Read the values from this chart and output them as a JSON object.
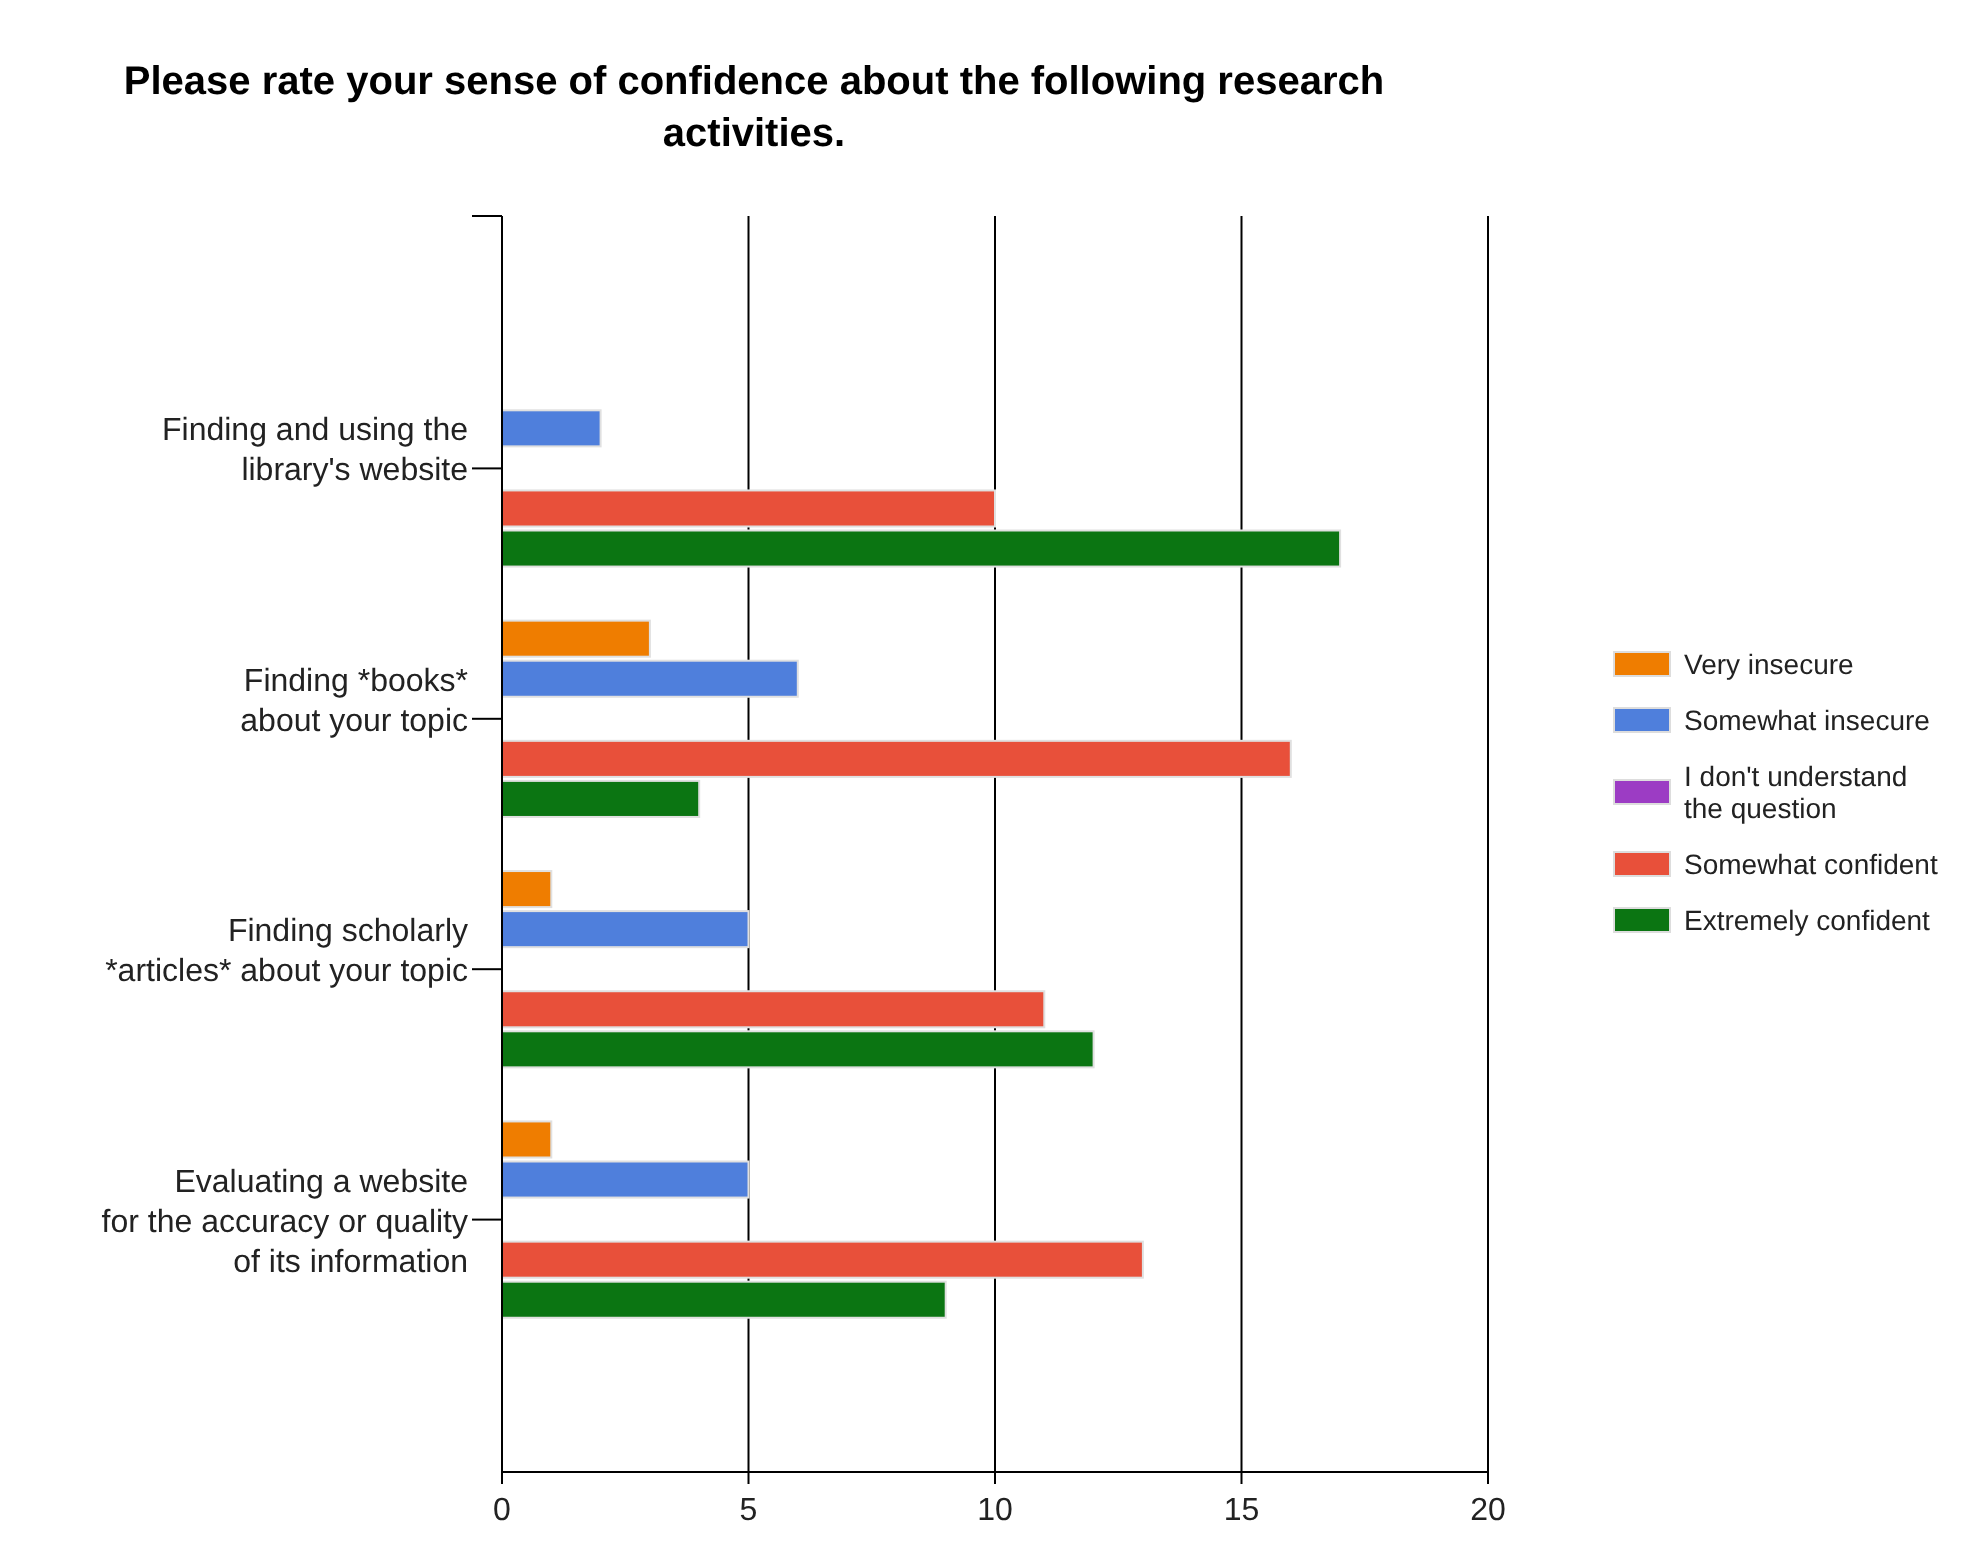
{
  "chart_data": {
    "type": "bar",
    "orientation": "horizontal",
    "title": "Please rate your sense of confidence about the following research\nactivities.",
    "categories": [
      "Finding and using the\nlibrary's website",
      "Finding *books*\nabout your topic",
      "Finding scholarly\n*articles* about your topic",
      "Evaluating a website\nfor the accuracy or quality\nof its information"
    ],
    "series": [
      {
        "name": "Very insecure",
        "color": "#ef7d00",
        "values": [
          0,
          3,
          1,
          1
        ]
      },
      {
        "name": "Somewhat insecure",
        "color": "#4f7fdc",
        "values": [
          2,
          6,
          5,
          5
        ]
      },
      {
        "name": "I don't understand\nthe question",
        "color": "#9c3cc4",
        "values": [
          0,
          0,
          0,
          0
        ]
      },
      {
        "name": "Somewhat confident",
        "color": "#e8503a",
        "values": [
          10,
          16,
          11,
          13
        ]
      },
      {
        "name": "Extremely confident",
        "color": "#0b7512",
        "values": [
          17,
          4,
          12,
          9
        ]
      }
    ],
    "xlim": [
      0,
      20
    ],
    "xticks": [
      0,
      5,
      10,
      15,
      20
    ],
    "grid": "x",
    "legend": "right"
  }
}
